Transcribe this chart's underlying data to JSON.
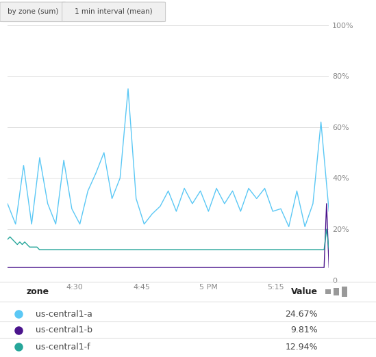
{
  "background_color": "#ffffff",
  "plot_bg_color": "#ffffff",
  "grid_color": "#e0e0e0",
  "x_tick_labels": [
    "4:30",
    "4:45",
    "5 PM",
    "5:15"
  ],
  "y_tick_labels": [
    "0",
    "20%",
    "40%",
    "60%",
    "80%",
    "100%"
  ],
  "y_tick_values": [
    0,
    20,
    40,
    60,
    80,
    100
  ],
  "button_labels": [
    "by zone (sum)",
    "1 min interval (mean)"
  ],
  "legend": [
    {
      "label": "us-central1-a",
      "color": "#5bc8f5",
      "value": "24.67%"
    },
    {
      "label": "us-central1-b",
      "color": "#4a148c",
      "value": "9.81%"
    },
    {
      "label": "us-central1-f",
      "color": "#26a69a",
      "value": "12.94%"
    }
  ],
  "series_a_y": [
    30,
    22,
    45,
    22,
    48,
    30,
    22,
    47,
    28,
    22,
    35,
    42,
    50,
    32,
    40,
    75,
    32,
    22,
    26,
    29,
    35,
    27,
    36,
    30,
    35,
    27,
    36,
    30,
    35,
    27,
    36,
    32,
    36,
    27,
    28,
    21,
    35,
    21,
    30,
    62,
    27
  ],
  "series_b_y": [
    5,
    5,
    5,
    5,
    5,
    5,
    5,
    5,
    5,
    5,
    5,
    5,
    5,
    5,
    5,
    5,
    5,
    5,
    5,
    5,
    5,
    5,
    5,
    5,
    5,
    5,
    5,
    5,
    5,
    5,
    5,
    5,
    5,
    5,
    5,
    5,
    5,
    5,
    5,
    5,
    5,
    5,
    5,
    5,
    5,
    5,
    5,
    5,
    5,
    5,
    5,
    5,
    5,
    5,
    5,
    5,
    5,
    5,
    5,
    5,
    5,
    5,
    5,
    5,
    5,
    5,
    5,
    5,
    5,
    5,
    5,
    5,
    5,
    5,
    5,
    5,
    5,
    5,
    5,
    5,
    5,
    5,
    5,
    5,
    5,
    5,
    5,
    5,
    5,
    5,
    5,
    5,
    5,
    5,
    5,
    5,
    5,
    5,
    5,
    5,
    5,
    5,
    5,
    5,
    5,
    5,
    5,
    5,
    5,
    5,
    5,
    5,
    5,
    5,
    5,
    5,
    5,
    5,
    5,
    5,
    5,
    5,
    5,
    5,
    5,
    5,
    5,
    5,
    5,
    5,
    30,
    5
  ],
  "series_f_y": [
    16,
    17,
    16,
    15,
    14,
    15,
    14,
    15,
    14,
    13,
    13,
    13,
    13,
    12,
    12,
    12,
    12,
    12,
    12,
    12,
    12,
    12,
    12,
    12,
    12,
    12,
    12,
    12,
    12,
    12,
    12,
    12,
    12,
    12,
    12,
    12,
    12,
    12,
    12,
    12,
    12,
    12,
    12,
    12,
    12,
    12,
    12,
    12,
    12,
    12,
    12,
    12,
    12,
    12,
    12,
    12,
    12,
    12,
    12,
    12,
    12,
    12,
    12,
    12,
    12,
    12,
    12,
    12,
    12,
    12,
    12,
    12,
    12,
    12,
    12,
    12,
    12,
    12,
    12,
    12,
    12,
    12,
    12,
    12,
    12,
    12,
    12,
    12,
    12,
    12,
    12,
    12,
    12,
    12,
    12,
    12,
    12,
    12,
    12,
    12,
    12,
    12,
    12,
    12,
    12,
    12,
    12,
    12,
    12,
    12,
    12,
    12,
    12,
    12,
    12,
    12,
    12,
    12,
    12,
    12,
    12,
    12,
    12,
    12,
    12,
    12,
    12,
    12,
    12,
    12,
    20,
    12
  ]
}
